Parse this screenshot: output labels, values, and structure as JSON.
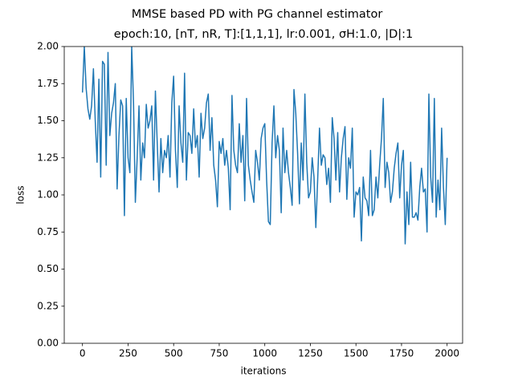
{
  "chart_data": {
    "type": "line",
    "title": "MMSE based PD with PG channel estimator",
    "subtitle": "epoch:10, [nT, nR, T]:[1,1,1], lr:0.001, σH:1.0, |D|:1",
    "x_label": "iterations",
    "y_label": "loss",
    "color": "#1f77b4",
    "x": [
      0,
      10,
      20,
      30,
      40,
      50,
      60,
      70,
      80,
      90,
      100,
      110,
      120,
      130,
      140,
      150,
      160,
      170,
      180,
      190,
      200,
      210,
      220,
      230,
      240,
      250,
      260,
      270,
      280,
      290,
      300,
      310,
      320,
      330,
      340,
      350,
      360,
      370,
      380,
      390,
      400,
      410,
      420,
      430,
      440,
      450,
      460,
      470,
      480,
      490,
      500,
      510,
      520,
      530,
      540,
      550,
      560,
      570,
      580,
      590,
      600,
      610,
      620,
      630,
      640,
      650,
      660,
      670,
      680,
      690,
      700,
      710,
      720,
      730,
      740,
      750,
      760,
      770,
      780,
      790,
      800,
      810,
      820,
      830,
      840,
      850,
      860,
      870,
      880,
      890,
      900,
      910,
      920,
      930,
      940,
      950,
      960,
      970,
      980,
      990,
      1000,
      1010,
      1020,
      1030,
      1040,
      1050,
      1060,
      1070,
      1080,
      1090,
      1100,
      1110,
      1120,
      1130,
      1140,
      1150,
      1160,
      1170,
      1180,
      1190,
      1200,
      1210,
      1220,
      1230,
      1240,
      1250,
      1260,
      1270,
      1280,
      1290,
      1300,
      1310,
      1320,
      1330,
      1340,
      1350,
      1360,
      1370,
      1380,
      1390,
      1400,
      1410,
      1420,
      1430,
      1440,
      1450,
      1460,
      1470,
      1480,
      1490,
      1500,
      1510,
      1520,
      1530,
      1540,
      1550,
      1560,
      1570,
      1580,
      1590,
      1600,
      1610,
      1620,
      1630,
      1640,
      1650,
      1660,
      1670,
      1680,
      1690,
      1700,
      1710,
      1720,
      1730,
      1740,
      1750,
      1760,
      1770,
      1780,
      1790,
      1800,
      1810,
      1820,
      1830,
      1840,
      1850,
      1860,
      1870,
      1880,
      1890,
      1900,
      1910,
      1920,
      1930,
      1940,
      1950,
      1960,
      1970,
      1980,
      1990,
      2000
    ],
    "values": [
      1.69,
      2.0,
      1.72,
      1.58,
      1.51,
      1.6,
      1.85,
      1.5,
      1.22,
      1.78,
      1.12,
      1.9,
      1.88,
      1.2,
      1.96,
      1.4,
      1.55,
      1.62,
      1.75,
      1.04,
      1.4,
      1.64,
      1.6,
      0.86,
      1.65,
      1.25,
      1.15,
      2.0,
      1.62,
      0.95,
      1.25,
      1.6,
      1.1,
      1.35,
      1.25,
      1.61,
      1.45,
      1.5,
      1.6,
      1.1,
      1.7,
      1.35,
      1.02,
      1.38,
      1.15,
      1.3,
      1.25,
      1.4,
      1.12,
      1.62,
      1.8,
      1.3,
      1.05,
      1.6,
      1.35,
      1.22,
      1.82,
      1.1,
      1.42,
      1.4,
      1.28,
      1.58,
      1.32,
      1.4,
      1.12,
      1.55,
      1.38,
      1.45,
      1.62,
      1.68,
      1.3,
      1.52,
      1.2,
      1.1,
      0.92,
      1.36,
      1.28,
      1.38,
      1.2,
      1.3,
      1.18,
      0.9,
      1.67,
      1.3,
      1.2,
      1.15,
      1.48,
      1.22,
      1.4,
      0.96,
      1.65,
      1.2,
      1.1,
      1.02,
      0.95,
      1.3,
      1.22,
      1.1,
      1.38,
      1.45,
      1.48,
      1.1,
      0.82,
      0.8,
      1.35,
      1.6,
      1.25,
      1.4,
      1.3,
      0.88,
      1.45,
      1.15,
      1.3,
      1.15,
      1.05,
      0.93,
      1.71,
      1.55,
      1.28,
      0.94,
      1.35,
      1.1,
      1.68,
      1.22,
      0.98,
      1.02,
      1.25,
      1.12,
      0.78,
      1.1,
      1.45,
      1.2,
      1.27,
      1.25,
      1.07,
      1.18,
      0.95,
      1.52,
      1.38,
      1.1,
      1.42,
      1.02,
      1.25,
      1.38,
      1.46,
      0.97,
      1.25,
      1.18,
      1.45,
      0.85,
      1.02,
      1.0,
      1.05,
      0.69,
      1.12,
      0.98,
      0.96,
      0.86,
      1.3,
      0.86,
      0.9,
      1.12,
      0.98,
      1.2,
      1.38,
      1.65,
      1.05,
      1.22,
      1.15,
      0.95,
      1.02,
      1.18,
      1.28,
      1.35,
      0.98,
      1.2,
      1.3,
      0.67,
      1.02,
      0.8,
      1.22,
      0.85,
      0.85,
      0.88,
      0.83,
      1.05,
      1.18,
      1.02,
      1.04,
      0.75,
      1.68,
      1.12,
      0.95,
      1.65,
      0.85,
      1.1,
      0.9,
      1.45,
      1.05,
      0.8,
      1.25
    ],
    "xlim": [
      -100,
      2085
    ],
    "ylim": [
      0,
      2
    ],
    "xticks": [
      0,
      250,
      500,
      750,
      1000,
      1250,
      1500,
      1750,
      2000
    ],
    "yticks": [
      {
        "value": 0,
        "label": "0.00"
      },
      {
        "value": 0.25,
        "label": "0.25"
      },
      {
        "value": 0.5,
        "label": "0.50"
      },
      {
        "value": 0.75,
        "label": "0.75"
      },
      {
        "value": 1,
        "label": "1.00"
      },
      {
        "value": 1.25,
        "label": "1.25"
      },
      {
        "value": 1.5,
        "label": "1.50"
      },
      {
        "value": 1.75,
        "label": "1.75"
      },
      {
        "value": 2,
        "label": "2.00"
      }
    ]
  }
}
